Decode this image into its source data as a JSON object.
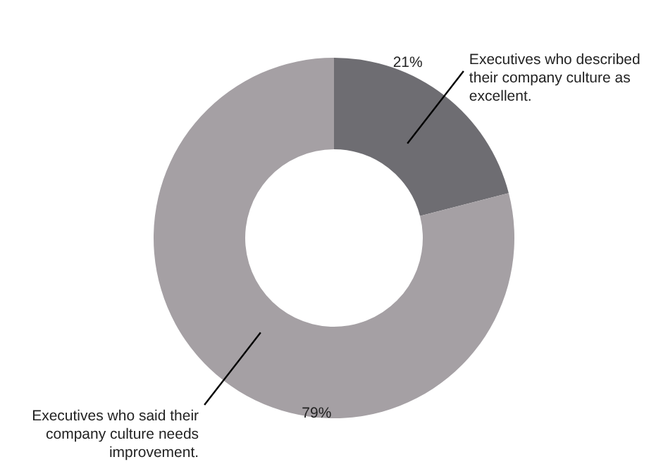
{
  "chart_data": {
    "type": "donut",
    "categories": [
      "Executives who described their company culture as excellent.",
      "Executives who said their company culture needs improvement."
    ],
    "values": [
      21,
      79
    ],
    "value_labels": [
      "21%",
      "79%"
    ],
    "colors": [
      "#6e6d72",
      "#a5a0a4"
    ]
  }
}
